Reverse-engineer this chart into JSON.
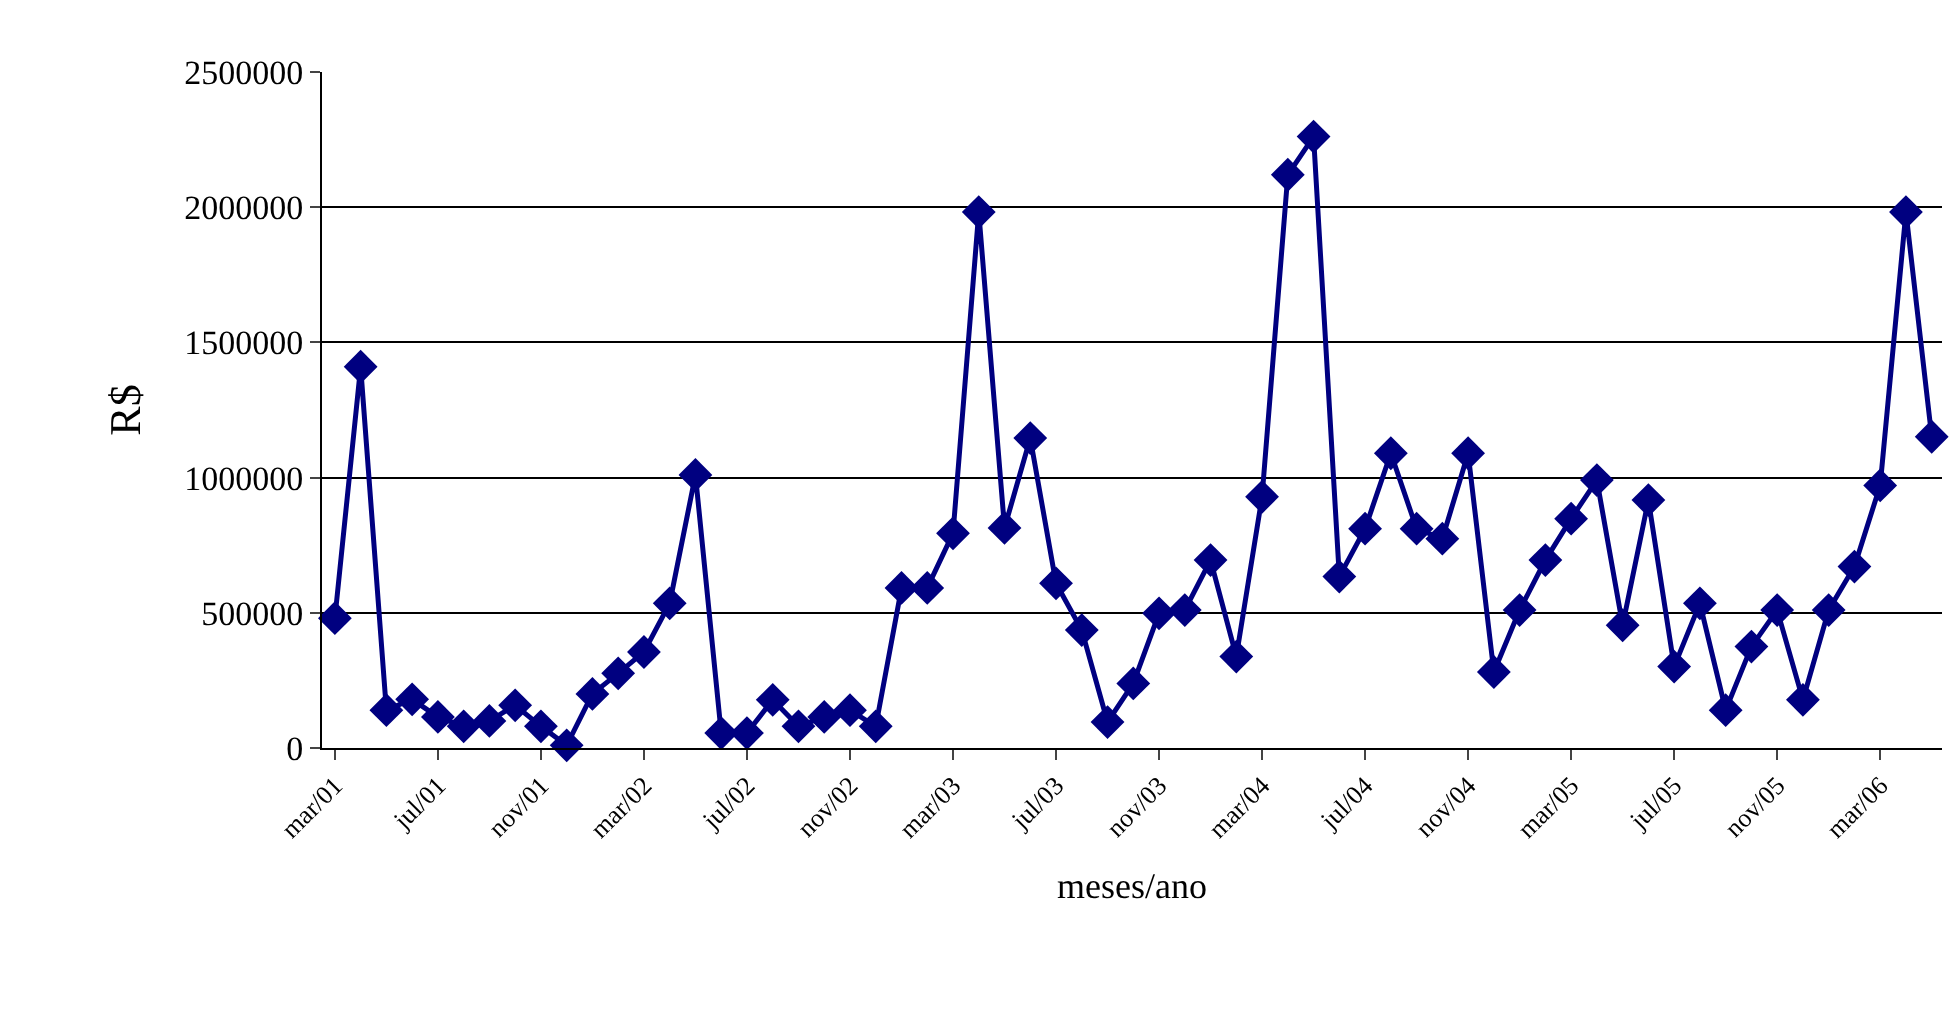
{
  "chart_data": {
    "type": "line",
    "xlabel": "meses/ano",
    "ylabel": "R$",
    "categories": [
      "mar/01",
      null,
      null,
      null,
      "jul/01",
      null,
      null,
      null,
      "nov/01",
      null,
      null,
      null,
      "mar/02",
      null,
      null,
      null,
      "jul/02",
      null,
      null,
      null,
      "nov/02",
      null,
      null,
      null,
      "mar/03",
      null,
      null,
      null,
      "jul/03",
      null,
      null,
      null,
      "nov/03",
      null,
      null,
      null,
      "mar/04",
      null,
      null,
      null,
      "jul/04",
      null,
      null,
      null,
      "nov/04",
      null,
      null,
      null,
      "mar/05",
      null,
      null,
      null,
      "jul/05",
      null,
      null,
      null,
      "nov/05",
      null,
      null,
      null,
      "mar/06",
      null,
      null
    ],
    "series": [
      {
        "color": "#000080",
        "values": [
          480000,
          1410000,
          140000,
          180000,
          115000,
          80000,
          100000,
          158000,
          80000,
          10000,
          200000,
          276000,
          355000,
          535000,
          1010000,
          55000,
          55000,
          178000,
          80000,
          115000,
          140000,
          80000,
          592000,
          592000,
          794000,
          1982000,
          814000,
          1146000,
          609000,
          436000,
          96000,
          239000,
          498000,
          510000,
          695000,
          338000,
          929000,
          2120000,
          2261000,
          634000,
          811000,
          1090000,
          811000,
          774000,
          1090000,
          281000,
          510000,
          695000,
          848000,
          991000,
          454000,
          917000,
          301000,
          535000,
          140000,
          375000,
          510000,
          178000,
          510000,
          671000,
          971000,
          1982000,
          1151000
        ]
      }
    ],
    "ylim": [
      0,
      2500000
    ],
    "yticks": [
      0,
      500000,
      1000000,
      1500000,
      2000000,
      2500000
    ],
    "grid": "y",
    "legend": false,
    "marker": "diamond",
    "line_style": "solid"
  }
}
